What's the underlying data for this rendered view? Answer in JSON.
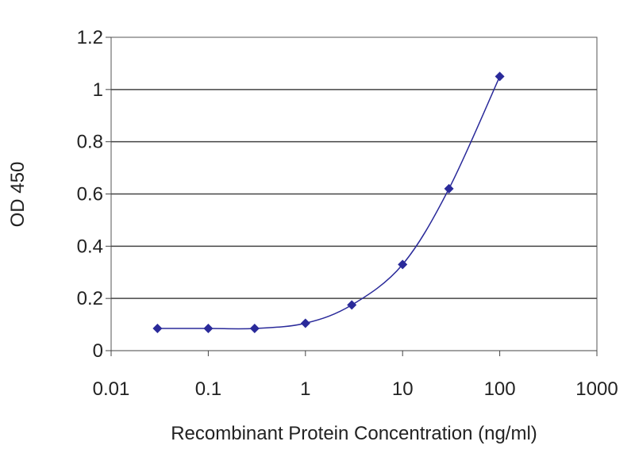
{
  "chart_data": {
    "type": "line",
    "title": "",
    "xlabel": "Recombinant Protein Concentration (ng/ml)",
    "ylabel": "OD 450",
    "xscale": "log",
    "xlim": [
      0.01,
      1000
    ],
    "ylim": [
      0,
      1.2
    ],
    "xticks": [
      0.01,
      0.1,
      1,
      10,
      100,
      1000
    ],
    "xtick_labels": [
      "0.01",
      "0.1",
      "1",
      "10",
      "100",
      "1000"
    ],
    "yticks": [
      0,
      0.2,
      0.4,
      0.6,
      0.8,
      1,
      1.2
    ],
    "ytick_labels": [
      "0",
      "0.2",
      "0.4",
      "0.6",
      "0.8",
      "1",
      "1.2"
    ],
    "grid": "horizontal",
    "legend": "none",
    "series": [
      {
        "x": [
          0.03,
          0.1,
          0.3,
          1,
          3,
          10,
          30,
          100
        ],
        "y": [
          0.085,
          0.085,
          0.085,
          0.105,
          0.175,
          0.33,
          0.62,
          1.05
        ],
        "color": "#2a2a9a",
        "marker": "diamond"
      }
    ]
  }
}
